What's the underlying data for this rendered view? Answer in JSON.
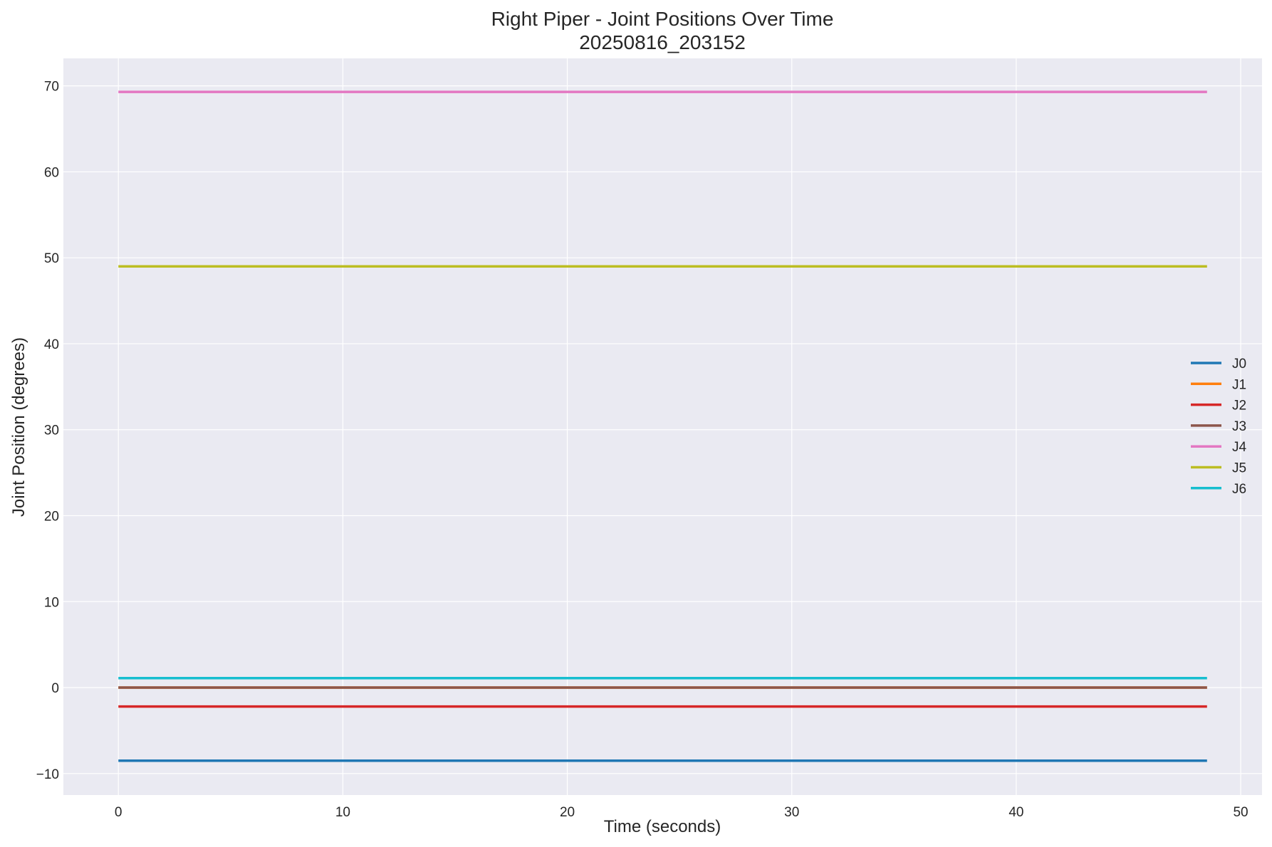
{
  "chart_data": {
    "type": "line",
    "title": "Right Piper - Joint Positions Over Time",
    "subtitle": "20250816_203152",
    "xlabel": "Time (seconds)",
    "ylabel": "Joint Position (degrees)",
    "xlim": [
      -2.45,
      50.95
    ],
    "ylim": [
      -12.5,
      73.2
    ],
    "x_ticks": [
      0,
      10,
      20,
      30,
      40,
      50
    ],
    "y_ticks": [
      -10,
      0,
      10,
      20,
      30,
      40,
      50,
      60,
      70
    ],
    "x_tick_labels": [
      "0",
      "10",
      "20",
      "30",
      "40",
      "50"
    ],
    "y_tick_labels": [
      "−10",
      "0",
      "10",
      "20",
      "30",
      "40",
      "50",
      "60",
      "70"
    ],
    "grid": true,
    "legend_position": "center-right",
    "series": [
      {
        "name": "J0",
        "color": "#1f77b4",
        "x": [
          0,
          48.5
        ],
        "y": [
          -8.5,
          -8.5
        ]
      },
      {
        "name": "J1",
        "color": "#ff7f0e",
        "x": [
          0,
          48.5
        ],
        "y": [
          0.0,
          0.0
        ]
      },
      {
        "name": "J2",
        "color": "#d62728",
        "x": [
          0,
          48.5
        ],
        "y": [
          -2.2,
          -2.2
        ]
      },
      {
        "name": "J3",
        "color": "#8c564b",
        "x": [
          0,
          48.5
        ],
        "y": [
          0.0,
          0.0
        ]
      },
      {
        "name": "J4",
        "color": "#e377c2",
        "x": [
          0,
          48.5
        ],
        "y": [
          69.3,
          69.3
        ]
      },
      {
        "name": "J5",
        "color": "#bcbd22",
        "x": [
          0,
          48.5
        ],
        "y": [
          49.0,
          49.0
        ]
      },
      {
        "name": "J6",
        "color": "#17becf",
        "x": [
          0,
          48.5
        ],
        "y": [
          1.1,
          1.1
        ]
      }
    ]
  },
  "colors": {
    "plot_background": "#eaeaf2",
    "grid": "#ffffff"
  }
}
